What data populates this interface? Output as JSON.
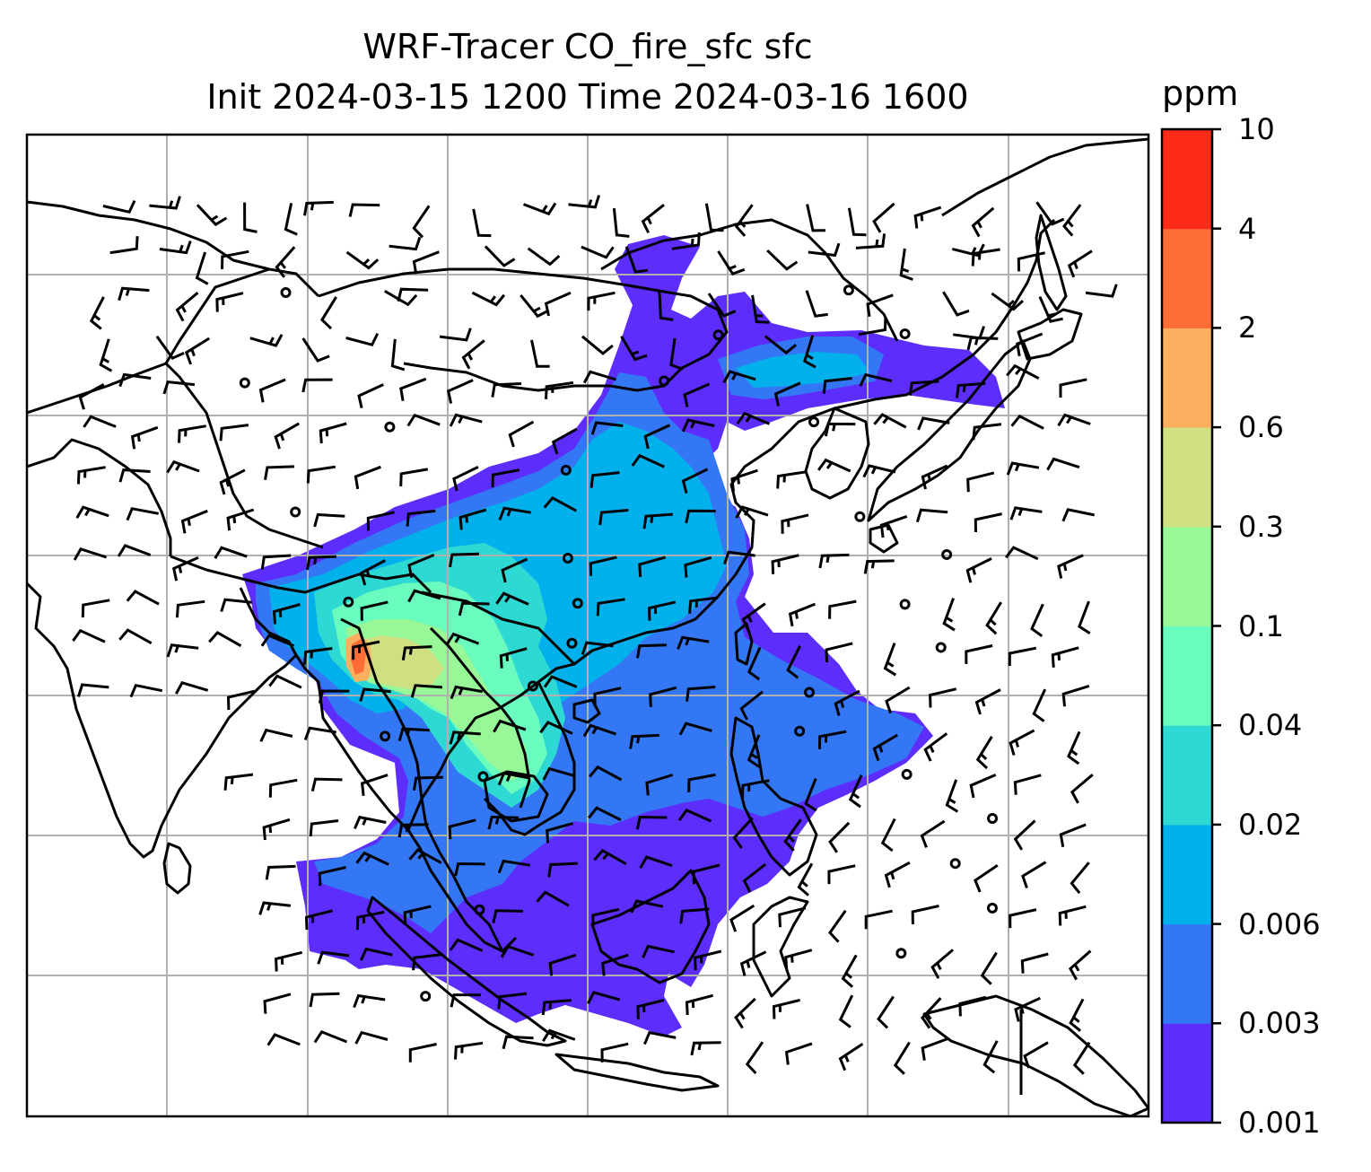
{
  "title": {
    "line1": "WRF-Tracer CO_fire_sfc sfc",
    "line2": "Init 2024-03-15 1200 Time 2024-03-16 1600"
  },
  "colorbar": {
    "unit": "ppm",
    "levels": [
      "0.001",
      "0.003",
      "0.006",
      "0.02",
      "0.04",
      "0.1",
      "0.3",
      "0.6",
      "2",
      "4",
      "10"
    ],
    "colors": [
      "#5d2dfc",
      "#3477f4",
      "#02b1ec",
      "#2fd9d3",
      "#6afbbf",
      "#98f898",
      "#cfe083",
      "#fdaf60",
      "#fe6c38",
      "#fd2b17"
    ]
  },
  "map": {
    "gridlines": true,
    "coastline_color": "#000000",
    "barb_color": "#000000",
    "gridline_color": "#b0b0b0"
  }
}
